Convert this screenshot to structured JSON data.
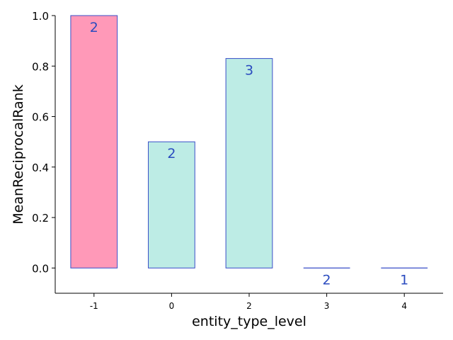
{
  "chart_data": {
    "type": "bar",
    "categories": [
      "-1",
      "0",
      "2",
      "3",
      "4"
    ],
    "values": [
      1.0,
      0.5,
      0.83,
      0.0,
      0.0
    ],
    "bar_labels": [
      "2",
      "2",
      "3",
      "2",
      "1"
    ],
    "bar_colors": [
      "#ff99b8",
      "#bdece5",
      "#bdece5",
      "#bdece5",
      "#bdece5"
    ],
    "edge_color": "#3a4fc8",
    "label_color": "#2a4bbf",
    "title": "",
    "xlabel": "entity_type_level",
    "ylabel": "MeanReciprocalRank",
    "ylim": [
      -0.1,
      1.0
    ],
    "yticks": [
      0.0,
      0.2,
      0.4,
      0.6,
      0.8,
      1.0
    ],
    "ytick_labels": [
      "0.0",
      "0.2",
      "0.4",
      "0.6",
      "0.8",
      "1.0"
    ],
    "grid": false,
    "legend": "none"
  }
}
